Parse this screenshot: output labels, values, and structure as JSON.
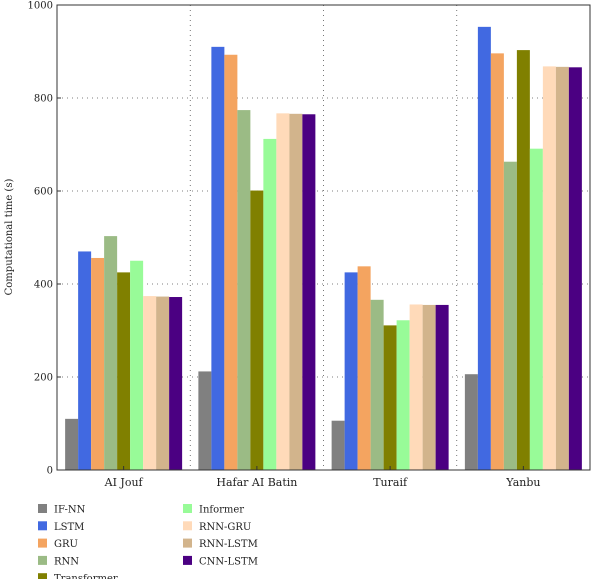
{
  "chart_data": {
    "type": "bar",
    "ylabel": "Computational time (s)",
    "ylim": [
      0,
      1000
    ],
    "yticks": [
      0,
      200,
      400,
      600,
      800,
      1000
    ],
    "grid": true,
    "legend_position": "bottom",
    "categories": [
      "AI Jouf",
      "Hafar AI Batin",
      "Turaif",
      "Yanbu"
    ],
    "series": [
      {
        "name": "IF-NN",
        "color": "#808080",
        "values": [
          110,
          212,
          106,
          206
        ]
      },
      {
        "name": "LSTM",
        "color": "#4169e1",
        "values": [
          470,
          910,
          425,
          953
        ]
      },
      {
        "name": "GRU",
        "color": "#f4a460",
        "values": [
          456,
          893,
          438,
          896
        ]
      },
      {
        "name": "RNN",
        "color": "#9bbb85",
        "values": [
          503,
          774,
          366,
          663
        ]
      },
      {
        "name": "Transformer",
        "color": "#808000",
        "values": [
          425,
          601,
          311,
          903
        ]
      },
      {
        "name": "Informer",
        "color": "#98fb98",
        "values": [
          450,
          712,
          322,
          691
        ]
      },
      {
        "name": "RNN-GRU",
        "color": "#ffdab9",
        "values": [
          374,
          767,
          356,
          868
        ]
      },
      {
        "name": "RNN-LSTM",
        "color": "#d2b48c",
        "values": [
          373,
          766,
          355,
          867
        ]
      },
      {
        "name": "CNN-LSTM",
        "color": "#4b0082",
        "values": [
          372,
          765,
          355,
          866
        ]
      }
    ]
  }
}
